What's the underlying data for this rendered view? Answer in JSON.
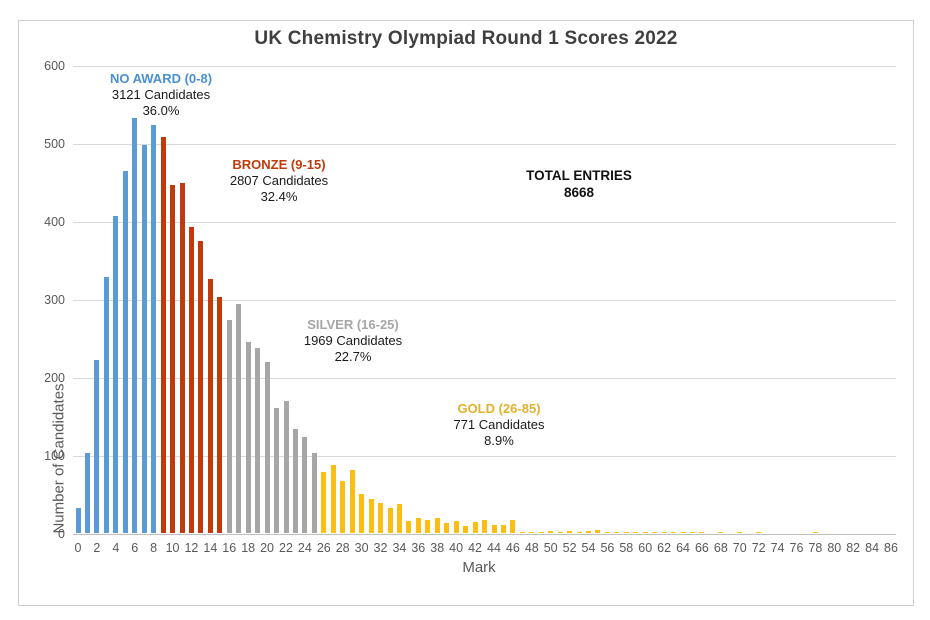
{
  "chart_data": {
    "type": "bar",
    "title": "UK Chemistry Olympiad Round 1 Scores 2022",
    "xlabel": "Mark",
    "ylabel": "Number of Candidates",
    "ylim": [
      0,
      600
    ],
    "yticks": [
      0,
      100,
      200,
      300,
      400,
      500,
      600
    ],
    "xticks": [
      0,
      2,
      4,
      6,
      8,
      10,
      12,
      14,
      16,
      18,
      20,
      22,
      24,
      26,
      28,
      30,
      32,
      34,
      36,
      38,
      40,
      42,
      44,
      46,
      48,
      50,
      52,
      54,
      56,
      58,
      60,
      62,
      64,
      66,
      68,
      70,
      72,
      74,
      76,
      78,
      80,
      82,
      84,
      86
    ],
    "mark_range": [
      0,
      86
    ],
    "values": [
      33,
      104,
      223,
      330,
      408,
      466,
      533,
      499,
      525,
      509,
      447,
      450,
      394,
      376,
      327,
      304,
      275,
      295,
      246,
      238,
      220,
      161,
      170,
      135,
      125,
      104,
      80,
      88,
      68,
      82,
      51,
      45,
      40,
      34,
      38,
      17,
      21,
      18,
      21,
      14,
      17,
      10,
      16,
      18,
      12,
      11,
      18,
      2,
      3,
      3,
      4,
      3,
      4,
      3,
      4,
      5,
      3,
      2,
      1,
      1,
      2,
      2,
      1,
      1,
      2,
      1,
      1,
      0,
      1,
      0,
      1,
      0,
      1,
      0,
      0,
      0,
      0,
      0,
      1,
      0,
      0,
      0,
      0,
      0,
      0,
      0,
      0
    ],
    "grid": "horizontal",
    "legend_position": "none",
    "groups": [
      {
        "name": "NO AWARD (0-8)",
        "start": 0,
        "end": 8,
        "bar_color": "#5b9bd5",
        "label_color": "#4a90d5",
        "candidates_line": "3121 Candidates",
        "percent_line": "36.0%"
      },
      {
        "name": "BRONZE (9-15)",
        "start": 9,
        "end": 15,
        "bar_color": "#c13a0b",
        "label_color": "#c13a0b",
        "candidates_line": "2807 Candidates",
        "percent_line": "32.4%"
      },
      {
        "name": "SILVER (16-25)",
        "start": 16,
        "end": 25,
        "bar_color": "#a6a6a6",
        "label_color": "#a6a6a6",
        "candidates_line": "1969 Candidates",
        "percent_line": "22.7%"
      },
      {
        "name": "GOLD (26-85)",
        "start": 26,
        "end": 85,
        "bar_color": "#fdbe14",
        "label_color": "#e2b22c",
        "candidates_line": "771 Candidates",
        "percent_line": "8.9%"
      }
    ],
    "total": {
      "label": "TOTAL ENTRIES",
      "value": "8668"
    }
  }
}
